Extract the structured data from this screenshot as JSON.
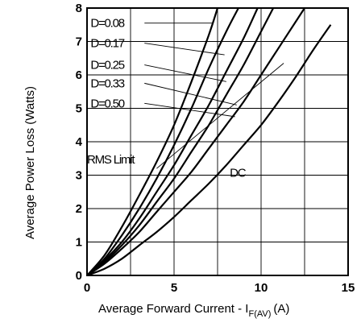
{
  "chart_data": {
    "type": "line",
    "title": "",
    "xlabel": "Average Forward Current - I",
    "xlabel_sub": "F(AV)",
    "xlabel_unit": "(A)",
    "ylabel": "Average Power Loss (Watts)",
    "xlim": [
      0,
      15
    ],
    "ylim": [
      0,
      8
    ],
    "xticks": [
      0,
      5,
      10,
      15
    ],
    "yticks": [
      0,
      1,
      2,
      3,
      4,
      5,
      6,
      7,
      8
    ],
    "grid": true,
    "series": [
      {
        "name": "D=0.08",
        "x": [
          0,
          1,
          2,
          3,
          4,
          5,
          6,
          7,
          7.5
        ],
        "y": [
          0,
          0.6,
          1.45,
          2.4,
          3.4,
          4.5,
          5.8,
          7.2,
          8.0
        ]
      },
      {
        "name": "D=0.17",
        "x": [
          0,
          1,
          2,
          3,
          4,
          5,
          6,
          7,
          8,
          8.7
        ],
        "y": [
          0,
          0.5,
          1.2,
          2.0,
          2.9,
          3.9,
          5.0,
          6.2,
          7.3,
          8.0
        ]
      },
      {
        "name": "D=0.25",
        "x": [
          0,
          1,
          2,
          3,
          4,
          5,
          6,
          7,
          8,
          9,
          9.8
        ],
        "y": [
          0,
          0.45,
          1.0,
          1.7,
          2.5,
          3.3,
          4.2,
          5.1,
          6.1,
          7.1,
          8.0
        ]
      },
      {
        "name": "D=0.33",
        "x": [
          0,
          1,
          2,
          3,
          4,
          5,
          6,
          7,
          8,
          9,
          10,
          10.7
        ],
        "y": [
          0,
          0.4,
          0.9,
          1.5,
          2.2,
          2.9,
          3.7,
          4.5,
          5.4,
          6.3,
          7.3,
          8.0
        ]
      },
      {
        "name": "D=0.50",
        "x": [
          0,
          1,
          2,
          3,
          4,
          5,
          6,
          7,
          8,
          9,
          10,
          11,
          12,
          12.5
        ],
        "y": [
          0,
          0.35,
          0.8,
          1.3,
          1.9,
          2.5,
          3.1,
          3.8,
          4.5,
          5.2,
          6.0,
          6.8,
          7.6,
          8.0
        ]
      },
      {
        "name": "DC",
        "x": [
          0,
          1,
          2,
          3,
          4,
          5,
          6,
          7,
          8,
          9,
          10,
          11,
          12,
          13,
          14
        ],
        "y": [
          0,
          0.2,
          0.5,
          0.9,
          1.3,
          1.75,
          2.25,
          2.75,
          3.3,
          3.9,
          4.5,
          5.2,
          5.95,
          6.75,
          7.5
        ]
      }
    ],
    "rms_limit_line": {
      "x": [
        4,
        11.3
      ],
      "y": [
        3.2,
        6.35
      ]
    },
    "annotations": {
      "rms_limit": "RMS Limit",
      "dc": "DC"
    }
  }
}
